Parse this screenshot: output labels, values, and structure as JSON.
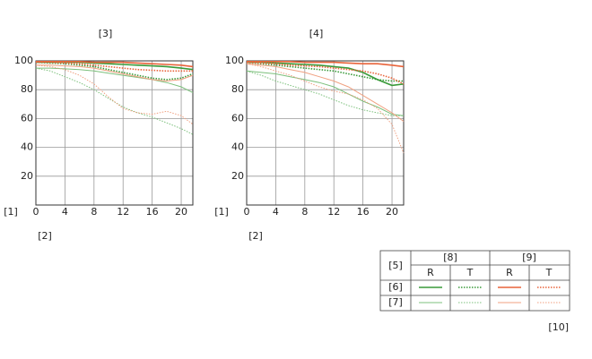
{
  "chart_data": [
    {
      "type": "line",
      "title": "[3]",
      "x_label": "[2]",
      "y_label": "[1]",
      "x": [
        0,
        2,
        4,
        6,
        8,
        10,
        12,
        14,
        16,
        18,
        20,
        21.6
      ],
      "xlim": [
        0,
        21.6
      ],
      "ylim": [
        0,
        100
      ],
      "xticks": [
        0,
        4,
        8,
        12,
        16,
        20
      ],
      "yticks": [
        20,
        40,
        60,
        80,
        100
      ],
      "grid": true,
      "series": [
        {
          "color": "#3a9a3a",
          "line_style": "solid",
          "width": 1.6,
          "values": [
            99,
            99,
            99,
            99,
            98.5,
            98,
            97.5,
            97,
            96.5,
            96,
            95,
            94
          ]
        },
        {
          "color": "#3a9a3a",
          "line_style": "dotted",
          "width": 1.6,
          "values": [
            99,
            98.5,
            98,
            97,
            96,
            94,
            92,
            90,
            88,
            87,
            88,
            91
          ]
        },
        {
          "color": "#e8633a",
          "line_style": "solid",
          "width": 1.6,
          "values": [
            99.5,
            99.5,
            99.5,
            99.5,
            99,
            99,
            99,
            98.5,
            98,
            97.5,
            97,
            96
          ]
        },
        {
          "color": "#e8633a",
          "line_style": "dotted",
          "width": 1.6,
          "values": [
            99,
            99,
            98.5,
            98,
            97,
            96,
            95,
            94,
            93.5,
            93,
            93,
            93
          ]
        },
        {
          "color": "#7cc07c",
          "line_style": "solid",
          "width": 1,
          "values": [
            95,
            95,
            94.5,
            94,
            93,
            91.5,
            90,
            88.5,
            87,
            85,
            82,
            78
          ]
        },
        {
          "color": "#7cc07c",
          "line_style": "dotted",
          "width": 1,
          "values": [
            95,
            93,
            89,
            85,
            80,
            74,
            68,
            64,
            61,
            57,
            53,
            49
          ]
        },
        {
          "color": "#f0a080",
          "line_style": "solid",
          "width": 1,
          "values": [
            97,
            97,
            96.5,
            96,
            95,
            93,
            91,
            89,
            87,
            86,
            87,
            90
          ]
        },
        {
          "color": "#f0a080",
          "line_style": "dotted",
          "width": 1,
          "values": [
            97,
            96,
            94,
            90,
            84,
            75,
            67,
            64,
            63,
            65,
            62,
            56
          ]
        }
      ]
    },
    {
      "type": "line",
      "title": "[4]",
      "x_label": "[2]",
      "y_label": "[1]",
      "x": [
        0,
        2,
        4,
        6,
        8,
        10,
        12,
        14,
        16,
        18,
        20,
        21.6
      ],
      "xlim": [
        0,
        21.6
      ],
      "ylim": [
        0,
        100
      ],
      "xticks": [
        0,
        4,
        8,
        12,
        16,
        20
      ],
      "yticks": [
        20,
        40,
        60,
        80,
        100
      ],
      "grid": true,
      "series": [
        {
          "color": "#3a9a3a",
          "line_style": "solid",
          "width": 1.6,
          "values": [
            99,
            99,
            98.5,
            98,
            97.5,
            97,
            96,
            95,
            92,
            87,
            83,
            84
          ]
        },
        {
          "color": "#3a9a3a",
          "line_style": "dotted",
          "width": 1.6,
          "values": [
            99,
            98,
            97,
            96,
            95,
            94,
            93,
            91,
            89,
            87,
            86,
            86
          ]
        },
        {
          "color": "#e8633a",
          "line_style": "solid",
          "width": 1.6,
          "values": [
            99.5,
            99.5,
            99.5,
            99.5,
            99,
            99,
            99,
            98.5,
            98,
            98,
            97,
            96
          ]
        },
        {
          "color": "#e8633a",
          "line_style": "dotted",
          "width": 1.6,
          "values": [
            99,
            98.5,
            98,
            97,
            96.5,
            96,
            95,
            94,
            93,
            91,
            88,
            84
          ]
        },
        {
          "color": "#7cc07c",
          "line_style": "solid",
          "width": 1,
          "values": [
            93,
            92,
            91,
            89,
            87,
            85,
            82,
            77,
            72,
            68,
            63,
            62
          ]
        },
        {
          "color": "#7cc07c",
          "line_style": "dotted",
          "width": 1,
          "values": [
            93,
            90,
            86,
            83,
            80,
            77,
            73,
            69,
            66,
            64,
            62,
            62
          ]
        },
        {
          "color": "#f0a080",
          "line_style": "solid",
          "width": 1,
          "values": [
            98,
            97,
            96,
            94,
            92,
            89,
            86,
            82,
            76,
            70,
            64,
            58
          ]
        },
        {
          "color": "#f0a080",
          "line_style": "dotted",
          "width": 1,
          "values": [
            98,
            96,
            93,
            90,
            86,
            82,
            79,
            77,
            73,
            67,
            56,
            36
          ]
        }
      ]
    }
  ],
  "legend": {
    "label": "[5]",
    "groups": [
      "[8]",
      "[9]"
    ],
    "columns": [
      "R",
      "T",
      "R",
      "T"
    ],
    "rows": [
      "[6]",
      "[7]"
    ],
    "note": "[10]"
  }
}
